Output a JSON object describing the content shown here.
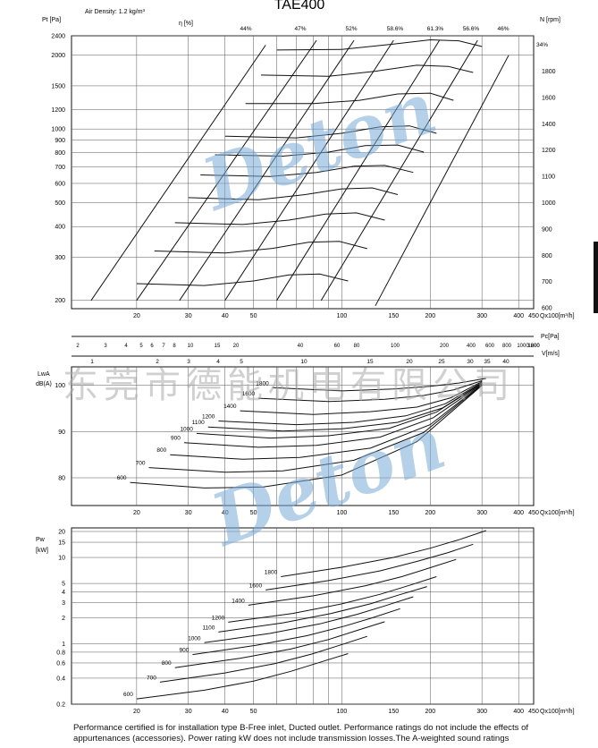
{
  "title": "TAE400",
  "air_density": "Air Density: 1.2 kg/m³",
  "footer": "Performance certified is for installation type B-Free inlet, Ducted outlet. Performance ratings do not include the effects of appurtenances (accessories). Power rating kW does not include transmission losses.The A-weighted sound ratings",
  "watermark_text": "东莞市德能机电有限公司",
  "watermark_logo": "Deton",
  "colors": {
    "line": "#111111",
    "grid": "#555555",
    "watermark_logo": "#78aad7",
    "watermark_text": "#aaaaaa"
  },
  "chart_data": [
    {
      "type": "line",
      "title": "",
      "ylabel": "Pt [Pa]",
      "ylabel_right": "N [rpm]",
      "efficiency_label": "η [%]",
      "xlabel": "Qx100[m³/h]",
      "xlim": [
        12,
        450
      ],
      "ylim": [
        185,
        2400
      ],
      "log_x": true,
      "log_y": true,
      "y_ticks": [
        "2400",
        "2000",
        "1500",
        "1200",
        "1000",
        "900",
        "800",
        "700",
        "600",
        "500",
        "400",
        "300",
        "200"
      ],
      "x_ticks": [
        "20",
        "30",
        "40",
        "50",
        "100",
        "150",
        "200",
        "300",
        "400",
        "450"
      ],
      "rpm_ticks": [
        "1800",
        "1600",
        "1400",
        "1200",
        "1100",
        "1000",
        "900",
        "800",
        "700",
        "600"
      ],
      "efficiency_ticks": [
        "44%",
        "47%",
        "52%",
        "58.6%",
        "61.3%",
        "56.6%",
        "46%",
        "34%"
      ],
      "series": [
        {
          "name": "1800",
          "x": [
            60,
            100,
            150,
            200,
            250,
            300
          ],
          "y": [
            2100,
            2110,
            2220,
            2310,
            2290,
            2170
          ]
        },
        {
          "name": "1600",
          "x": [
            53,
            90,
            130,
            180,
            230,
            280
          ],
          "y": [
            1660,
            1640,
            1720,
            1820,
            1800,
            1700
          ]
        },
        {
          "name": "1400",
          "x": [
            47,
            80,
            115,
            155,
            200,
            240
          ],
          "y": [
            1270,
            1270,
            1310,
            1390,
            1400,
            1310
          ]
        },
        {
          "name": "1200",
          "x": [
            40,
            70,
            100,
            135,
            170,
            210
          ],
          "y": [
            935,
            920,
            960,
            1020,
            1030,
            960
          ]
        },
        {
          "name": "1100",
          "x": [
            37,
            63,
            90,
            120,
            155,
            190
          ],
          "y": [
            785,
            775,
            805,
            855,
            860,
            805
          ]
        },
        {
          "name": "1000",
          "x": [
            33,
            57,
            82,
            110,
            140,
            175
          ],
          "y": [
            650,
            640,
            665,
            705,
            710,
            665
          ]
        },
        {
          "name": "900",
          "x": [
            30,
            52,
            75,
            100,
            127,
            155
          ],
          "y": [
            525,
            515,
            540,
            570,
            575,
            540
          ]
        },
        {
          "name": "800",
          "x": [
            27,
            46,
            66,
            88,
            112,
            140
          ],
          "y": [
            415,
            408,
            425,
            450,
            455,
            425
          ]
        },
        {
          "name": "700",
          "x": [
            23,
            40,
            58,
            77,
            98,
            122
          ],
          "y": [
            318,
            312,
            326,
            345,
            348,
            325
          ]
        },
        {
          "name": "600",
          "x": [
            20,
            34,
            50,
            66,
            84,
            105
          ],
          "y": [
            234,
            230,
            240,
            254,
            256,
            240
          ]
        }
      ],
      "efficiency_lines": [
        {
          "name": "44%",
          "x": [
            14,
            55
          ],
          "y": [
            200,
            2200
          ]
        },
        {
          "name": "47%",
          "x": [
            20,
            82
          ],
          "y": [
            200,
            2300
          ]
        },
        {
          "name": "52%",
          "x": [
            28,
            110
          ],
          "y": [
            200,
            2300
          ]
        },
        {
          "name": "58.6%",
          "x": [
            40,
            150
          ],
          "y": [
            200,
            2300
          ]
        },
        {
          "name": "61.3%",
          "x": [
            60,
            215
          ],
          "y": [
            200,
            2300
          ]
        },
        {
          "name": "56.6%",
          "x": [
            85,
            290
          ],
          "y": [
            200,
            2300
          ]
        },
        {
          "name": "46%",
          "x": [
            130,
            370
          ],
          "y": [
            190,
            2000
          ]
        }
      ]
    },
    {
      "type": "line",
      "title": "",
      "ylabel": "LwA dB(A)",
      "xlabel": "Qx100[m³/h]",
      "xlim": [
        12,
        450
      ],
      "ylim": [
        74,
        104
      ],
      "log_x": true,
      "y_ticks": [
        "100",
        "90",
        "80"
      ],
      "x_ticks": [
        "20",
        "30",
        "40",
        "50",
        "100",
        "150",
        "200",
        "300",
        "400",
        "450"
      ],
      "pc_ticks": [
        "2",
        "3",
        "4",
        "5",
        "6",
        "7",
        "8",
        "10",
        "15",
        "20",
        "40",
        "60",
        "80",
        "100",
        "200",
        "400",
        "600",
        "800",
        "1000",
        "1200",
        "1600"
      ],
      "pc_label": "Pc[Pa]",
      "v_ticks": [
        "1",
        "2",
        "3",
        "4",
        "5",
        "10",
        "15",
        "20",
        "25",
        "30",
        "35",
        "40"
      ],
      "v_label": "V[m/s]",
      "series": [
        {
          "name": "1800",
          "x": [
            58,
            100,
            150,
            200,
            250,
            310
          ],
          "y": [
            99.5,
            98.8,
            99.2,
            99.8,
            100.5,
            101.5
          ]
        },
        {
          "name": "1600",
          "x": [
            52,
            90,
            140,
            190,
            240,
            300
          ],
          "y": [
            97.2,
            96.5,
            97.0,
            97.8,
            99.0,
            101.0
          ]
        },
        {
          "name": "1400",
          "x": [
            45,
            80,
            125,
            180,
            235,
            300
          ],
          "y": [
            94.5,
            93.7,
            94.3,
            95.3,
            97.3,
            100.8
          ]
        },
        {
          "name": "1200",
          "x": [
            38,
            70,
            110,
            165,
            225,
            300
          ],
          "y": [
            92.3,
            91.5,
            92.0,
            93.4,
            96.0,
            100.6
          ]
        },
        {
          "name": "1100",
          "x": [
            35,
            63,
            100,
            155,
            220,
            300
          ],
          "y": [
            91.0,
            90.1,
            90.6,
            92.0,
            95.1,
            100.5
          ]
        },
        {
          "name": "1000",
          "x": [
            32,
            57,
            90,
            145,
            210,
            300
          ],
          "y": [
            89.6,
            88.6,
            89.1,
            90.7,
            94.2,
            100.4
          ]
        },
        {
          "name": "900",
          "x": [
            29,
            52,
            82,
            135,
            205,
            300
          ],
          "y": [
            87.6,
            86.6,
            87.0,
            88.8,
            93.0,
            100.3
          ]
        },
        {
          "name": "800",
          "x": [
            26,
            46,
            72,
            125,
            200,
            300
          ],
          "y": [
            85.0,
            84.0,
            84.4,
            86.4,
            91.5,
            100.2
          ]
        },
        {
          "name": "700",
          "x": [
            22,
            40,
            63,
            110,
            190,
            300
          ],
          "y": [
            82.2,
            81.2,
            81.5,
            83.8,
            89.8,
            100.1
          ]
        },
        {
          "name": "600",
          "x": [
            19,
            34,
            54,
            100,
            180,
            300
          ],
          "y": [
            79.0,
            77.8,
            78.0,
            80.6,
            87.8,
            100.0
          ]
        }
      ]
    },
    {
      "type": "line",
      "title": "",
      "ylabel": "Pw [kW]",
      "xlabel": "Qx100[m³/h]",
      "xlim": [
        12,
        450
      ],
      "ylim": [
        0.2,
        22
      ],
      "log_x": true,
      "log_y": true,
      "y_ticks": [
        "20",
        "15",
        "10",
        "5",
        "4",
        "3",
        "2",
        "1",
        "0.8",
        "0.6",
        "0.4",
        "0.2"
      ],
      "x_ticks": [
        "20",
        "30",
        "40",
        "50",
        "100",
        "150",
        "200",
        "300",
        "400",
        "450"
      ],
      "series": [
        {
          "name": "1800",
          "x": [
            62,
            100,
            150,
            200,
            250,
            310
          ],
          "y": [
            6.0,
            7.7,
            10.0,
            12.8,
            16.0,
            20.5
          ]
        },
        {
          "name": "1600",
          "x": [
            55,
            90,
            135,
            180,
            230,
            280
          ],
          "y": [
            4.2,
            5.4,
            7.0,
            9.0,
            11.4,
            14.2
          ]
        },
        {
          "name": "1400",
          "x": [
            48,
            80,
            120,
            160,
            200,
            245
          ],
          "y": [
            2.8,
            3.6,
            4.7,
            6.0,
            7.6,
            9.5
          ]
        },
        {
          "name": "1200",
          "x": [
            41,
            68,
            100,
            135,
            170,
            210
          ],
          "y": [
            1.78,
            2.25,
            2.9,
            3.75,
            4.75,
            6.0
          ]
        },
        {
          "name": "1100",
          "x": [
            38,
            63,
            92,
            125,
            155,
            195
          ],
          "y": [
            1.37,
            1.75,
            2.25,
            2.9,
            3.65,
            4.6
          ]
        },
        {
          "name": "1000",
          "x": [
            34,
            57,
            84,
            113,
            140,
            175
          ],
          "y": [
            1.03,
            1.32,
            1.7,
            2.2,
            2.75,
            3.5
          ]
        },
        {
          "name": "900",
          "x": [
            31,
            51,
            76,
            102,
            127,
            158
          ],
          "y": [
            0.75,
            0.96,
            1.24,
            1.6,
            2.0,
            2.55
          ]
        },
        {
          "name": "800",
          "x": [
            27,
            45,
            67,
            90,
            112,
            140
          ],
          "y": [
            0.53,
            0.68,
            0.87,
            1.12,
            1.42,
            1.8
          ]
        },
        {
          "name": "700",
          "x": [
            24,
            40,
            59,
            79,
            98,
            122
          ],
          "y": [
            0.36,
            0.46,
            0.59,
            0.76,
            0.96,
            1.22
          ]
        },
        {
          "name": "600",
          "x": [
            20,
            34,
            50,
            67,
            84,
            105
          ],
          "y": [
            0.23,
            0.29,
            0.37,
            0.48,
            0.61,
            0.77
          ]
        }
      ]
    }
  ]
}
